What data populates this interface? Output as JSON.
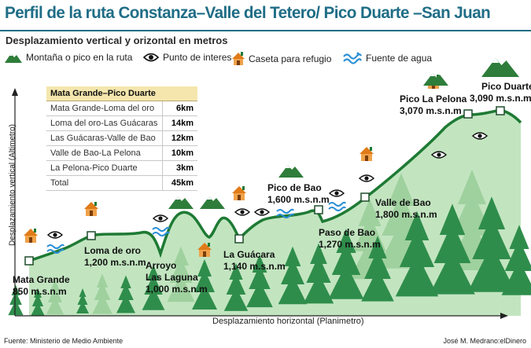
{
  "title": "Perfil de la ruta Constanza–Valle del Tetero/ Pico Duarte –San Juan",
  "subtitle": "Desplazamiento vertical y orizontal en metros",
  "legend": [
    {
      "icon": "mountain-icon",
      "label": "Montaña o pico en la ruta"
    },
    {
      "icon": "eye-icon",
      "label": "Punto de interes"
    },
    {
      "icon": "hut-icon",
      "label": "Caseta para refugio"
    },
    {
      "icon": "water-icon",
      "label": "Fuente de agua"
    }
  ],
  "axes": {
    "y_label": "Desplazamiento vertical (Altimetro)",
    "x_label": "Desplazamiento horizontal (Planimetro)"
  },
  "waypoints": [
    {
      "name": "Mata Grande",
      "altitude": "850 m.s.n.m",
      "altitude_m": 850
    },
    {
      "name": "Loma de oro",
      "altitude": "1,200 m.s.n.m",
      "altitude_m": 1200
    },
    {
      "name": "Arroyo",
      "name2": "Las Laguna",
      "altitude": "1,000 m.s.n.m",
      "altitude_m": 1000
    },
    {
      "name": "La Guácara",
      "altitude": "1,140 m.s.n.m",
      "altitude_m": 1140
    },
    {
      "name": "Pico de Bao",
      "altitude": "1,600 m.s.n.m",
      "altitude_m": 1600
    },
    {
      "name": "Paso de Bao",
      "altitude": "1,270 m.s.n.m",
      "altitude_m": 1270
    },
    {
      "name": "Valle de Bao",
      "altitude": "1,800 m.s.n.m",
      "altitude_m": 1800
    },
    {
      "name": "Pico La Pelona",
      "altitude": "3,070 m.s.n.m",
      "altitude_m": 3070
    },
    {
      "name": "Pico Duarte",
      "altitude": "3,090 m.s.n.m",
      "altitude_m": 3090
    }
  ],
  "table": {
    "header": "Mata Grande–Pico Duarte",
    "rows": [
      {
        "segment": "Mata Grande-Loma del oro",
        "km": "6km"
      },
      {
        "segment": "Loma del oro-Las Guácaras",
        "km": "14km"
      },
      {
        "segment": "Las Guácaras-Valle de Bao",
        "km": "12km"
      },
      {
        "segment": "Valle de Bao-La Pelona",
        "km": "10km"
      },
      {
        "segment": "La Pelona-Pico Duarte",
        "km": "3km"
      },
      {
        "segment": "Total",
        "km": "45km"
      }
    ]
  },
  "footer": {
    "source": "Fuente: Ministerio de Medio Ambiente",
    "credit": "José M. Medrano:elDinero"
  },
  "colors": {
    "title": "#1f6d86",
    "terrain": "#bfe3bd",
    "ridge": "#1e7a34",
    "tree": "#2e8b4a",
    "hut": "#e07b18",
    "water": "#2a8fd6",
    "table_header": "#f4e6ad"
  }
}
